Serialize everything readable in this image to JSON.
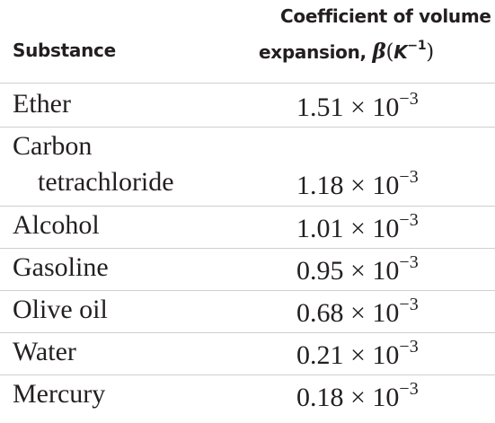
{
  "header": {
    "substance": "Substance",
    "coefficient": {
      "line1": "Coefficient of volume",
      "line2": "expansion,",
      "symbol": "β",
      "unit_open": "(",
      "unit": "K",
      "unit_exponent": "−1",
      "unit_close": ")"
    }
  },
  "table": {
    "rows": [
      {
        "substance": [
          "Ether"
        ],
        "coefficient": "1.51",
        "multiplier": "× 10",
        "exponent": "−3"
      },
      {
        "substance": [
          "Carbon",
          "tetrachloride"
        ],
        "coefficient": "1.18",
        "multiplier": "× 10",
        "exponent": "−3"
      },
      {
        "substance": [
          "Alcohol"
        ],
        "coefficient": "1.01",
        "multiplier": "× 10",
        "exponent": "−3"
      },
      {
        "substance": [
          "Gasoline"
        ],
        "coefficient": "0.95",
        "multiplier": "× 10",
        "exponent": "−3"
      },
      {
        "substance": [
          "Olive oil"
        ],
        "coefficient": "0.68",
        "multiplier": "× 10",
        "exponent": "−3"
      },
      {
        "substance": [
          "Water"
        ],
        "coefficient": "0.21",
        "multiplier": "× 10",
        "exponent": "−3"
      },
      {
        "substance": [
          "Mercury"
        ],
        "coefficient": "0.18",
        "multiplier": "× 10",
        "exponent": "−3"
      }
    ]
  }
}
